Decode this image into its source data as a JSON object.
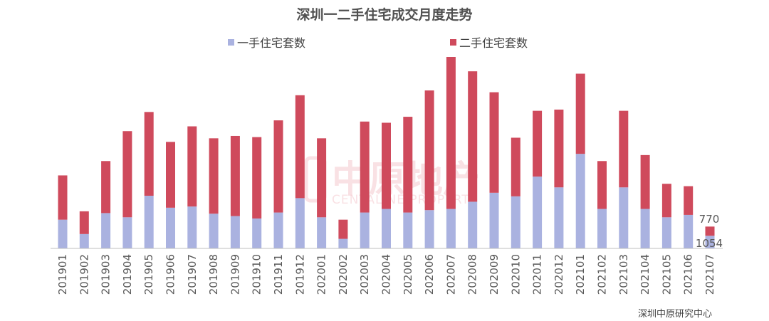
{
  "chart_data": {
    "type": "bar",
    "stacked": true,
    "title": "深圳一二手住宅成交月度走势",
    "xlabel": "",
    "ylabel": "",
    "ylim": [
      0,
      16000
    ],
    "grid": false,
    "legend_position": "top",
    "categories": [
      "201901",
      "201902",
      "201903",
      "201904",
      "201905",
      "201906",
      "201907",
      "201908",
      "201909",
      "201910",
      "201911",
      "201912",
      "202001",
      "202002",
      "202003",
      "202004",
      "202005",
      "202006",
      "202007",
      "202008",
      "202009",
      "202010",
      "202011",
      "202012",
      "202101",
      "202102",
      "202103",
      "202104",
      "202105",
      "202106",
      "202107"
    ],
    "series": [
      {
        "name": "一手住宅套数",
        "color": "#aab2e0",
        "values": [
          2400,
          1200,
          2950,
          2600,
          4400,
          3400,
          3500,
          2900,
          2700,
          2500,
          3000,
          4200,
          2600,
          800,
          3000,
          3300,
          3000,
          3200,
          3300,
          3900,
          4650,
          4350,
          6000,
          5100,
          7900,
          3300,
          5100,
          3300,
          2600,
          2800,
          1054
        ]
      },
      {
        "name": "二手住宅套数",
        "color": "#cf4a5c",
        "values": [
          3700,
          1900,
          4350,
          7200,
          7000,
          5500,
          6700,
          6300,
          6700,
          6800,
          7700,
          8600,
          6600,
          1600,
          7600,
          7200,
          8000,
          10000,
          12700,
          10900,
          8400,
          4900,
          5500,
          6500,
          6700,
          4000,
          6400,
          4500,
          2800,
          2400,
          770
        ]
      }
    ],
    "annotations": {
      "last_first_hand_label": "1054",
      "last_second_hand_label": "770"
    },
    "watermark": {
      "text_cn": "中原地产",
      "text_en": "CENTALINE PROPERTY"
    },
    "source": "深圳中原研究中心"
  }
}
